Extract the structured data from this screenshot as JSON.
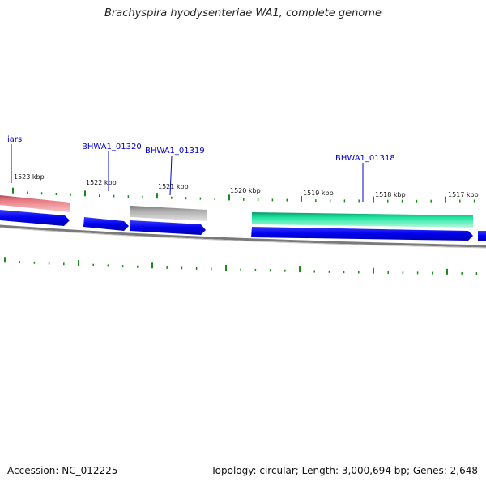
{
  "header": {
    "title": "Brachyspira hyodysenteriae WA1, complete genome"
  },
  "footer": {
    "accession": "Accession: NC_012225",
    "summary": "Topology: circular; Length: 3,000,694 bp; Genes: 2,648"
  },
  "tick_labels": [
    "1523 kbp",
    "1522 kbp",
    "1521 kbp",
    "1520 kbp",
    "1519 kbp",
    "1518 kbp",
    "1517 kbp"
  ],
  "gene_labels": [
    "iars",
    "BHWA1_01320",
    "BHWA1_01319",
    "BHWA1_01318"
  ],
  "colors": {
    "cds": "#0000ee",
    "rrna_pink": "#e87b82",
    "pseudo_gray": "#aaaaaa",
    "feature_green": "#1ee6a0",
    "backbone": "#808080",
    "ticks": "#1a8a1a",
    "labels": "#0000cc"
  }
}
